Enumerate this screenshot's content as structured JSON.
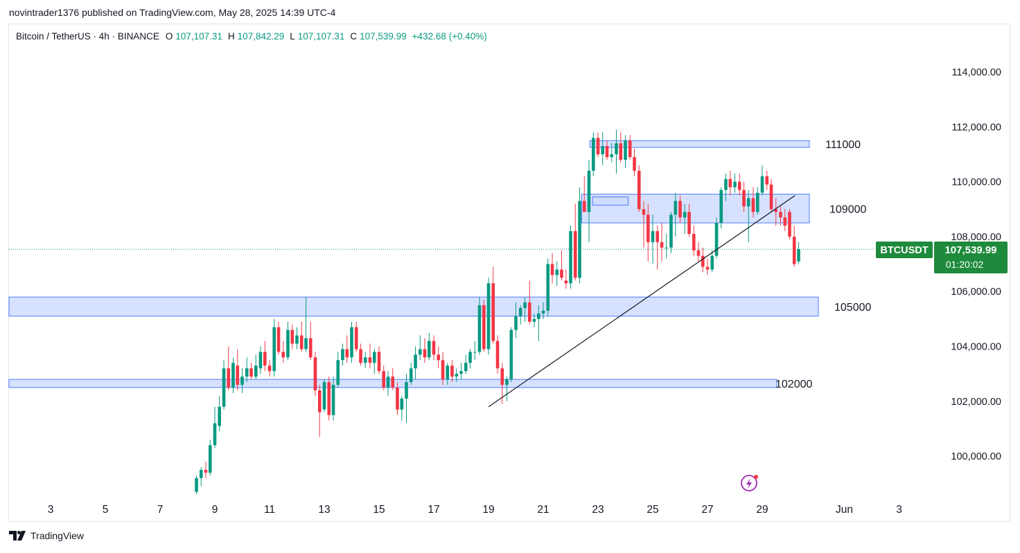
{
  "publisher_line": "novintrader1376 published on TradingView.com, May 28, 2025 14:39 UTC-4",
  "header": {
    "symbol": "Bitcoin / TetherUS · 4h · BINANCE",
    "o_label": "O",
    "o_value": "107,107.31",
    "h_label": "H",
    "h_value": "107,842.29",
    "l_label": "L",
    "l_value": "107,107.31",
    "c_label": "C",
    "c_value": "107,539.99",
    "change": "+432.68 (+0.40%)"
  },
  "price_tag": {
    "symbol": "BTCUSDT",
    "price": "107,539.99",
    "countdown": "01:20:02"
  },
  "footer": {
    "brand": "TradingView"
  },
  "colors": {
    "up": "#089981",
    "down": "#f23645",
    "zone_fill": "#cfdcff",
    "zone_stroke": "#2962ff",
    "tag_bg": "#1e8a3b",
    "trendline": "#131722"
  },
  "chart_data": {
    "type": "candlestick",
    "symbol": "BTCUSDT",
    "interval": "4h",
    "ylim": [
      98500,
      115600
    ],
    "y_ticks": [
      "114,000.00",
      "112,000.00",
      "110,000.00",
      "108,000.00",
      "106,000.00",
      "104,000.00",
      "102,000.00",
      "100,000.00"
    ],
    "y_tick_values": [
      114000,
      112000,
      110000,
      108000,
      106000,
      104000,
      102000,
      100000
    ],
    "x_ticks": [
      "3",
      "5",
      "7",
      "9",
      "11",
      "13",
      "15",
      "17",
      "19",
      "21",
      "23",
      "25",
      "27",
      "29",
      "Jun",
      "3"
    ],
    "x_tick_days": [
      3,
      5,
      7,
      9,
      11,
      13,
      15,
      17,
      19,
      21,
      23,
      25,
      27,
      29,
      32,
      34
    ],
    "last_price": 107539.99,
    "zones": [
      {
        "label": "111000",
        "from_day": 22.7,
        "low": 111250,
        "high": 111500
      },
      {
        "label": "109000",
        "from_day": 22.4,
        "low": 108500,
        "high": 109550
      },
      {
        "label": "105000",
        "from_day": 1.0,
        "low": 105100,
        "high": 105800
      },
      {
        "label": "102000",
        "from_day": 1.0,
        "low": 102500,
        "high": 102800
      }
    ],
    "inner_zone": {
      "from_day": 22.8,
      "to_day": 24.1,
      "low": 109150,
      "high": 109450
    },
    "trendline": {
      "x1_day": 19.0,
      "y1": 101800,
      "x2_day": 30.2,
      "y2": 109500
    },
    "candles": [
      {
        "day": 8.33,
        "o": 98700,
        "h": 99300,
        "l": 98600,
        "c": 99200
      },
      {
        "day": 8.5,
        "o": 99200,
        "h": 99600,
        "l": 98900,
        "c": 99500
      },
      {
        "day": 8.67,
        "o": 99500,
        "h": 99800,
        "l": 99200,
        "c": 99400
      },
      {
        "day": 8.83,
        "o": 99400,
        "h": 100600,
        "l": 99300,
        "c": 100400
      },
      {
        "day": 9.0,
        "o": 100400,
        "h": 101800,
        "l": 100300,
        "c": 101200
      },
      {
        "day": 9.17,
        "o": 101100,
        "h": 102200,
        "l": 100900,
        "c": 101800
      },
      {
        "day": 9.33,
        "o": 101800,
        "h": 103500,
        "l": 101700,
        "c": 103200
      },
      {
        "day": 9.5,
        "o": 103200,
        "h": 104000,
        "l": 102400,
        "c": 102500
      },
      {
        "day": 9.67,
        "o": 102500,
        "h": 103600,
        "l": 102300,
        "c": 103400
      },
      {
        "day": 9.83,
        "o": 103300,
        "h": 103900,
        "l": 102400,
        "c": 102600
      },
      {
        "day": 10.0,
        "o": 102600,
        "h": 103200,
        "l": 102300,
        "c": 102900
      },
      {
        "day": 10.17,
        "o": 102900,
        "h": 103600,
        "l": 102700,
        "c": 103200
      },
      {
        "day": 10.33,
        "o": 103200,
        "h": 103400,
        "l": 102800,
        "c": 102900
      },
      {
        "day": 10.5,
        "o": 102900,
        "h": 103700,
        "l": 102800,
        "c": 103300
      },
      {
        "day": 10.67,
        "o": 103200,
        "h": 104000,
        "l": 103000,
        "c": 103800
      },
      {
        "day": 10.83,
        "o": 103800,
        "h": 104200,
        "l": 103100,
        "c": 103300
      },
      {
        "day": 11.0,
        "o": 103300,
        "h": 103500,
        "l": 102900,
        "c": 103100
      },
      {
        "day": 11.17,
        "o": 103100,
        "h": 105000,
        "l": 102900,
        "c": 104700
      },
      {
        "day": 11.33,
        "o": 104700,
        "h": 104900,
        "l": 103700,
        "c": 103800
      },
      {
        "day": 11.5,
        "o": 103800,
        "h": 104200,
        "l": 103400,
        "c": 103600
      },
      {
        "day": 11.67,
        "o": 103600,
        "h": 104900,
        "l": 103500,
        "c": 104600
      },
      {
        "day": 11.83,
        "o": 104600,
        "h": 104800,
        "l": 103900,
        "c": 104100
      },
      {
        "day": 12.0,
        "o": 104100,
        "h": 104700,
        "l": 103900,
        "c": 104400
      },
      {
        "day": 12.17,
        "o": 104400,
        "h": 104900,
        "l": 103800,
        "c": 103900
      },
      {
        "day": 12.33,
        "o": 103900,
        "h": 105800,
        "l": 103800,
        "c": 104300
      },
      {
        "day": 12.5,
        "o": 104300,
        "h": 104900,
        "l": 103500,
        "c": 103600
      },
      {
        "day": 12.67,
        "o": 103600,
        "h": 103800,
        "l": 102200,
        "c": 102400
      },
      {
        "day": 12.83,
        "o": 102400,
        "h": 102600,
        "l": 100700,
        "c": 101600
      },
      {
        "day": 13.0,
        "o": 101700,
        "h": 102800,
        "l": 101600,
        "c": 102700
      },
      {
        "day": 13.17,
        "o": 102700,
        "h": 102900,
        "l": 101300,
        "c": 101500
      },
      {
        "day": 13.33,
        "o": 101500,
        "h": 102900,
        "l": 101300,
        "c": 102600
      },
      {
        "day": 13.5,
        "o": 102600,
        "h": 103800,
        "l": 102500,
        "c": 103500
      },
      {
        "day": 13.67,
        "o": 103500,
        "h": 104100,
        "l": 103300,
        "c": 103900
      },
      {
        "day": 13.83,
        "o": 103900,
        "h": 104400,
        "l": 103400,
        "c": 103600
      },
      {
        "day": 14.0,
        "o": 103600,
        "h": 104900,
        "l": 103400,
        "c": 104700
      },
      {
        "day": 14.17,
        "o": 104700,
        "h": 104900,
        "l": 103800,
        "c": 103900
      },
      {
        "day": 14.33,
        "o": 103900,
        "h": 104100,
        "l": 103300,
        "c": 103400
      },
      {
        "day": 14.5,
        "o": 103400,
        "h": 103800,
        "l": 103200,
        "c": 103600
      },
      {
        "day": 14.67,
        "o": 103600,
        "h": 104100,
        "l": 103200,
        "c": 103400
      },
      {
        "day": 14.83,
        "o": 103400,
        "h": 103900,
        "l": 103000,
        "c": 103800
      },
      {
        "day": 15.0,
        "o": 103800,
        "h": 104000,
        "l": 103000,
        "c": 103100
      },
      {
        "day": 15.17,
        "o": 103100,
        "h": 103300,
        "l": 102400,
        "c": 102500
      },
      {
        "day": 15.33,
        "o": 102500,
        "h": 103100,
        "l": 102200,
        "c": 102900
      },
      {
        "day": 15.5,
        "o": 102900,
        "h": 103200,
        "l": 102400,
        "c": 102500
      },
      {
        "day": 15.67,
        "o": 102500,
        "h": 102700,
        "l": 101500,
        "c": 101700
      },
      {
        "day": 15.83,
        "o": 101700,
        "h": 102200,
        "l": 101300,
        "c": 102100
      },
      {
        "day": 16.0,
        "o": 102100,
        "h": 103000,
        "l": 101200,
        "c": 102700
      },
      {
        "day": 16.17,
        "o": 102700,
        "h": 103400,
        "l": 102600,
        "c": 103200
      },
      {
        "day": 16.33,
        "o": 103200,
        "h": 104000,
        "l": 102800,
        "c": 103700
      },
      {
        "day": 16.5,
        "o": 103700,
        "h": 104400,
        "l": 103500,
        "c": 103900
      },
      {
        "day": 16.67,
        "o": 103900,
        "h": 104300,
        "l": 103400,
        "c": 103600
      },
      {
        "day": 16.83,
        "o": 103600,
        "h": 104500,
        "l": 103500,
        "c": 104200
      },
      {
        "day": 17.0,
        "o": 104200,
        "h": 104400,
        "l": 103500,
        "c": 103700
      },
      {
        "day": 17.17,
        "o": 103700,
        "h": 104000,
        "l": 103200,
        "c": 103500
      },
      {
        "day": 17.33,
        "o": 103500,
        "h": 103800,
        "l": 102600,
        "c": 102800
      },
      {
        "day": 17.5,
        "o": 102800,
        "h": 103400,
        "l": 102600,
        "c": 103300
      },
      {
        "day": 17.67,
        "o": 103300,
        "h": 103500,
        "l": 102700,
        "c": 102900
      },
      {
        "day": 17.83,
        "o": 102900,
        "h": 103200,
        "l": 102700,
        "c": 103000
      },
      {
        "day": 18.0,
        "o": 103000,
        "h": 103400,
        "l": 102800,
        "c": 103100
      },
      {
        "day": 18.17,
        "o": 103100,
        "h": 103700,
        "l": 103000,
        "c": 103400
      },
      {
        "day": 18.33,
        "o": 103400,
        "h": 103900,
        "l": 103200,
        "c": 103800
      },
      {
        "day": 18.5,
        "o": 103800,
        "h": 104200,
        "l": 103500,
        "c": 103800
      },
      {
        "day": 18.67,
        "o": 103800,
        "h": 105800,
        "l": 103700,
        "c": 105500
      },
      {
        "day": 18.83,
        "o": 105500,
        "h": 105700,
        "l": 103800,
        "c": 103900
      },
      {
        "day": 19.0,
        "o": 103900,
        "h": 106500,
        "l": 103700,
        "c": 106300
      },
      {
        "day": 19.17,
        "o": 106300,
        "h": 106900,
        "l": 104100,
        "c": 104200
      },
      {
        "day": 19.33,
        "o": 104200,
        "h": 104400,
        "l": 103000,
        "c": 103200
      },
      {
        "day": 19.5,
        "o": 103200,
        "h": 103400,
        "l": 101900,
        "c": 102600
      },
      {
        "day": 19.67,
        "o": 102600,
        "h": 102900,
        "l": 102000,
        "c": 102800
      },
      {
        "day": 19.83,
        "o": 102800,
        "h": 104700,
        "l": 102700,
        "c": 104600
      },
      {
        "day": 20.0,
        "o": 104600,
        "h": 105600,
        "l": 104300,
        "c": 105100
      },
      {
        "day": 20.17,
        "o": 105100,
        "h": 105500,
        "l": 104800,
        "c": 105400
      },
      {
        "day": 20.33,
        "o": 105400,
        "h": 105800,
        "l": 104900,
        "c": 105600
      },
      {
        "day": 20.5,
        "o": 105600,
        "h": 106400,
        "l": 104800,
        "c": 104900
      },
      {
        "day": 20.67,
        "o": 104900,
        "h": 105200,
        "l": 104700,
        "c": 105000
      },
      {
        "day": 20.83,
        "o": 105000,
        "h": 105500,
        "l": 104200,
        "c": 105200
      },
      {
        "day": 21.0,
        "o": 105200,
        "h": 105600,
        "l": 105000,
        "c": 105300
      },
      {
        "day": 21.17,
        "o": 105300,
        "h": 107200,
        "l": 105100,
        "c": 107000
      },
      {
        "day": 21.33,
        "o": 107000,
        "h": 107400,
        "l": 106300,
        "c": 106600
      },
      {
        "day": 21.5,
        "o": 106600,
        "h": 107100,
        "l": 106200,
        "c": 106800
      },
      {
        "day": 21.67,
        "o": 106800,
        "h": 107500,
        "l": 106400,
        "c": 106500
      },
      {
        "day": 21.83,
        "o": 106400,
        "h": 106800,
        "l": 106100,
        "c": 106300
      },
      {
        "day": 22.0,
        "o": 106300,
        "h": 108400,
        "l": 106100,
        "c": 108200
      },
      {
        "day": 22.17,
        "o": 108200,
        "h": 109200,
        "l": 106400,
        "c": 106500
      },
      {
        "day": 22.33,
        "o": 106500,
        "h": 109800,
        "l": 106300,
        "c": 109300
      },
      {
        "day": 22.5,
        "o": 109300,
        "h": 110200,
        "l": 108900,
        "c": 108900
      },
      {
        "day": 22.67,
        "o": 108900,
        "h": 110800,
        "l": 107800,
        "c": 110400
      },
      {
        "day": 22.83,
        "o": 110400,
        "h": 111800,
        "l": 110200,
        "c": 111600
      },
      {
        "day": 23.0,
        "o": 111600,
        "h": 111800,
        "l": 110900,
        "c": 111000
      },
      {
        "day": 23.17,
        "o": 111000,
        "h": 111800,
        "l": 110600,
        "c": 111300
      },
      {
        "day": 23.33,
        "o": 111300,
        "h": 111500,
        "l": 110800,
        "c": 110900
      },
      {
        "day": 23.5,
        "o": 110900,
        "h": 111400,
        "l": 110700,
        "c": 111000
      },
      {
        "day": 23.67,
        "o": 111000,
        "h": 111900,
        "l": 110300,
        "c": 111400
      },
      {
        "day": 23.83,
        "o": 111400,
        "h": 111800,
        "l": 110700,
        "c": 110800
      },
      {
        "day": 24.0,
        "o": 110800,
        "h": 111700,
        "l": 110500,
        "c": 111500
      },
      {
        "day": 24.17,
        "o": 111500,
        "h": 111700,
        "l": 110800,
        "c": 110900
      },
      {
        "day": 24.33,
        "o": 110900,
        "h": 111200,
        "l": 110200,
        "c": 110400
      },
      {
        "day": 24.5,
        "o": 110400,
        "h": 110600,
        "l": 108900,
        "c": 109000
      },
      {
        "day": 24.67,
        "o": 109000,
        "h": 109300,
        "l": 107600,
        "c": 108800
      },
      {
        "day": 24.83,
        "o": 108800,
        "h": 109200,
        "l": 107100,
        "c": 107800
      },
      {
        "day": 25.0,
        "o": 107800,
        "h": 108800,
        "l": 107000,
        "c": 108200
      },
      {
        "day": 25.17,
        "o": 108200,
        "h": 108400,
        "l": 106800,
        "c": 107800
      },
      {
        "day": 25.33,
        "o": 107800,
        "h": 108500,
        "l": 107100,
        "c": 107600
      },
      {
        "day": 25.5,
        "o": 107600,
        "h": 108100,
        "l": 107200,
        "c": 107600
      },
      {
        "day": 25.67,
        "o": 107600,
        "h": 108900,
        "l": 107400,
        "c": 108800
      },
      {
        "day": 25.83,
        "o": 108800,
        "h": 109600,
        "l": 108000,
        "c": 109300
      },
      {
        "day": 26.0,
        "o": 109300,
        "h": 109500,
        "l": 108500,
        "c": 108700
      },
      {
        "day": 26.17,
        "o": 108700,
        "h": 109200,
        "l": 108100,
        "c": 108900
      },
      {
        "day": 26.33,
        "o": 108900,
        "h": 109200,
        "l": 108000,
        "c": 108100
      },
      {
        "day": 26.5,
        "o": 108100,
        "h": 108400,
        "l": 107300,
        "c": 107500
      },
      {
        "day": 26.67,
        "o": 107500,
        "h": 107800,
        "l": 107100,
        "c": 107300
      },
      {
        "day": 26.83,
        "o": 107300,
        "h": 107600,
        "l": 106700,
        "c": 106900
      },
      {
        "day": 27.0,
        "o": 106900,
        "h": 107200,
        "l": 106600,
        "c": 106800
      },
      {
        "day": 27.17,
        "o": 106800,
        "h": 107500,
        "l": 106700,
        "c": 107300
      },
      {
        "day": 27.33,
        "o": 107300,
        "h": 108700,
        "l": 107200,
        "c": 108500
      },
      {
        "day": 27.5,
        "o": 108500,
        "h": 109800,
        "l": 108300,
        "c": 109700
      },
      {
        "day": 27.67,
        "o": 109700,
        "h": 110300,
        "l": 109300,
        "c": 110100
      },
      {
        "day": 27.83,
        "o": 110100,
        "h": 110400,
        "l": 109500,
        "c": 109800
      },
      {
        "day": 28.0,
        "o": 109800,
        "h": 110300,
        "l": 109600,
        "c": 110000
      },
      {
        "day": 28.17,
        "o": 110000,
        "h": 110300,
        "l": 109500,
        "c": 109700
      },
      {
        "day": 28.33,
        "o": 109700,
        "h": 110000,
        "l": 108900,
        "c": 109100
      },
      {
        "day": 28.5,
        "o": 109100,
        "h": 109700,
        "l": 107800,
        "c": 109400
      },
      {
        "day": 28.67,
        "o": 109400,
        "h": 109800,
        "l": 108700,
        "c": 108900
      },
      {
        "day": 28.83,
        "o": 108900,
        "h": 109800,
        "l": 108800,
        "c": 109600
      },
      {
        "day": 29.0,
        "o": 109600,
        "h": 110600,
        "l": 109500,
        "c": 110200
      },
      {
        "day": 29.17,
        "o": 110200,
        "h": 110400,
        "l": 109700,
        "c": 109900
      },
      {
        "day": 29.33,
        "o": 109900,
        "h": 110100,
        "l": 108900,
        "c": 109000
      },
      {
        "day": 29.5,
        "o": 109000,
        "h": 109400,
        "l": 108400,
        "c": 108900
      },
      {
        "day": 29.67,
        "o": 108900,
        "h": 109100,
        "l": 108400,
        "c": 108700
      },
      {
        "day": 29.83,
        "o": 108700,
        "h": 109000,
        "l": 108200,
        "c": 108400
      },
      {
        "day": 30.0,
        "o": 108900,
        "h": 109000,
        "l": 107900,
        "c": 108000
      },
      {
        "day": 30.17,
        "o": 108000,
        "h": 108400,
        "l": 106900,
        "c": 107000
      },
      {
        "day": 30.33,
        "o": 107100,
        "h": 107800,
        "l": 107000,
        "c": 107540
      }
    ]
  }
}
